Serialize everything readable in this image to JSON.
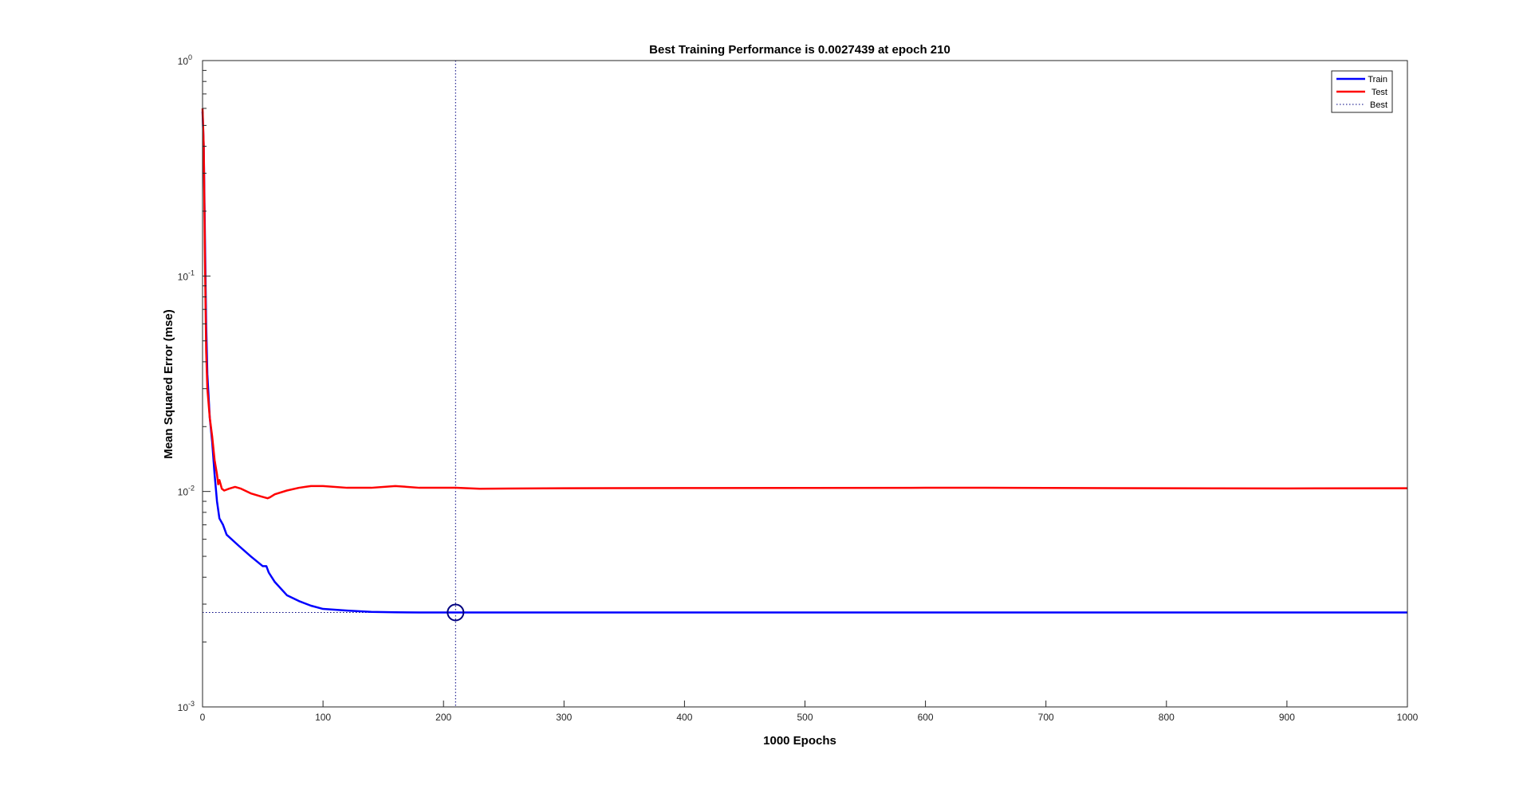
{
  "chart_data": {
    "type": "line",
    "title": "Best Training Performance is 0.0027439 at epoch 210",
    "xlabel": "1000 Epochs",
    "ylabel": "Mean Squared Error  (mse)",
    "xlim": [
      0,
      1000
    ],
    "ylim": [
      0.001,
      1
    ],
    "yscale": "log",
    "grid": false,
    "legend_position": "top-right",
    "x_ticks": [
      0,
      100,
      200,
      300,
      400,
      500,
      600,
      700,
      800,
      900,
      1000
    ],
    "x_tick_labels": [
      "0",
      "100",
      "200",
      "300",
      "400",
      "500",
      "600",
      "700",
      "800",
      "900",
      "1000"
    ],
    "y_ticks": [
      0.001,
      0.01,
      0.1,
      1
    ],
    "y_tick_labels": [
      {
        "base": "10",
        "exp": "-3"
      },
      {
        "base": "10",
        "exp": "-2"
      },
      {
        "base": "10",
        "exp": "-1"
      },
      {
        "base": "10",
        "exp": "0"
      }
    ],
    "series": [
      {
        "name": "Train",
        "color": "#0000ff",
        "style": "solid",
        "x": [
          0,
          1,
          2,
          3,
          4,
          6,
          8,
          10,
          12,
          14,
          17,
          20,
          30,
          40,
          50,
          53,
          55,
          60,
          70,
          80,
          90,
          100,
          120,
          140,
          160,
          180,
          200,
          210,
          300,
          400,
          500,
          600,
          700,
          800,
          900,
          1000
        ],
        "y": [
          0.58,
          0.4,
          0.15,
          0.06,
          0.035,
          0.022,
          0.017,
          0.012,
          0.009,
          0.0075,
          0.007,
          0.0063,
          0.0056,
          0.005,
          0.0045,
          0.0045,
          0.0042,
          0.0038,
          0.0033,
          0.0031,
          0.00295,
          0.00285,
          0.0028,
          0.00276,
          0.00275,
          0.002745,
          0.002744,
          0.0027439,
          0.0027439,
          0.0027439,
          0.0027439,
          0.0027439,
          0.0027439,
          0.0027439,
          0.0027439,
          0.0027439
        ]
      },
      {
        "name": "Test",
        "color": "#ff0000",
        "style": "solid",
        "x": [
          0,
          1,
          2,
          3,
          4,
          6,
          8,
          10,
          12,
          13,
          14,
          16,
          18,
          22,
          27,
          32,
          40,
          48,
          54,
          56,
          60,
          70,
          80,
          90,
          100,
          120,
          140,
          160,
          180,
          200,
          210,
          230,
          300,
          400,
          500,
          600,
          650,
          700,
          800,
          900,
          1000
        ],
        "y": [
          0.6,
          0.4,
          0.12,
          0.045,
          0.03,
          0.022,
          0.018,
          0.014,
          0.012,
          0.0108,
          0.0113,
          0.0103,
          0.0101,
          0.0103,
          0.0105,
          0.0103,
          0.0098,
          0.0095,
          0.0093,
          0.0094,
          0.0097,
          0.0101,
          0.0104,
          0.0106,
          0.0106,
          0.0104,
          0.0104,
          0.0106,
          0.0104,
          0.0104,
          0.0104,
          0.0103,
          0.01035,
          0.01037,
          0.01038,
          0.0104,
          0.0104,
          0.01038,
          0.01035,
          0.01033,
          0.01035
        ]
      },
      {
        "name": "Best",
        "color": "#000080",
        "style": "dotted"
      }
    ],
    "best": {
      "epoch": 210,
      "value": 0.0027439,
      "marker": "circle",
      "color": "#000080"
    }
  }
}
